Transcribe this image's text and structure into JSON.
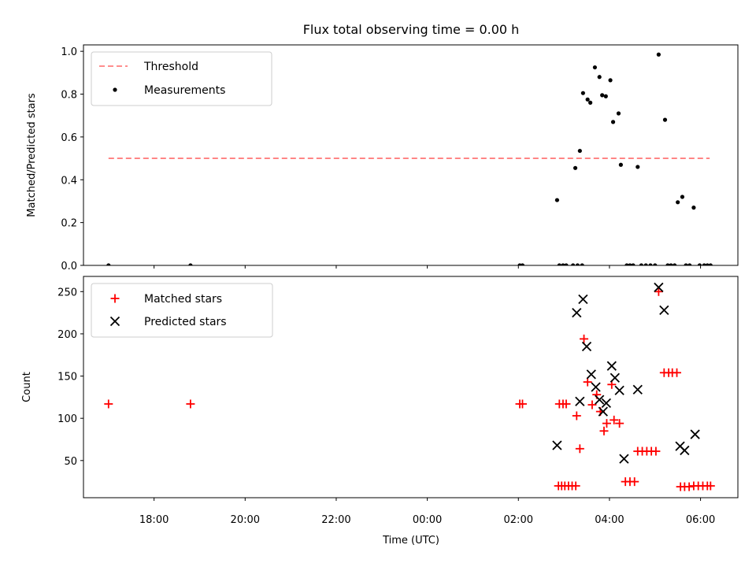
{
  "title": "Flux total observing time = 0.00 h",
  "x_axis": {
    "label": "Time (UTC)",
    "ticks": [
      {
        "value": 18,
        "label": "18:00"
      },
      {
        "value": 20,
        "label": "20:00"
      },
      {
        "value": 22,
        "label": "22:00"
      },
      {
        "value": 24,
        "label": "00:00"
      },
      {
        "value": 26,
        "label": "02:00"
      },
      {
        "value": 28,
        "label": "04:00"
      },
      {
        "value": 30,
        "label": "06:00"
      }
    ]
  },
  "chart_data": [
    {
      "type": "scatter",
      "panel": "top",
      "ylabel": "Matched/Predicted stars",
      "xlim": [
        16.45,
        30.82
      ],
      "ylim": [
        0,
        1.03
      ],
      "yticks": [
        {
          "value": 0.0,
          "label": "0.0"
        },
        {
          "value": 0.2,
          "label": "0.2"
        },
        {
          "value": 0.4,
          "label": "0.4"
        },
        {
          "value": 0.6,
          "label": "0.6"
        },
        {
          "value": 0.8,
          "label": "0.8"
        },
        {
          "value": 1.0,
          "label": "1.0"
        }
      ],
      "legend_position": "top-left",
      "threshold": {
        "name": "Threshold",
        "value": 0.5,
        "x_range": [
          17.0,
          30.2
        ],
        "color": "#ff7f7f",
        "style": "dashed"
      },
      "measurements": {
        "name": "Measurements",
        "color": "#000000",
        "points": [
          [
            17.0,
            0.0
          ],
          [
            18.8,
            0.0
          ],
          [
            26.03,
            0.0
          ],
          [
            26.09,
            0.0
          ],
          [
            26.9,
            0.0
          ],
          [
            26.98,
            0.0
          ],
          [
            27.05,
            0.0
          ],
          [
            27.2,
            0.0
          ],
          [
            27.3,
            0.0
          ],
          [
            27.4,
            0.0
          ],
          [
            26.85,
            0.305
          ],
          [
            27.25,
            0.455
          ],
          [
            27.35,
            0.535
          ],
          [
            27.42,
            0.805
          ],
          [
            27.52,
            0.775
          ],
          [
            27.58,
            0.76
          ],
          [
            27.68,
            0.925
          ],
          [
            27.78,
            0.88
          ],
          [
            27.84,
            0.795
          ],
          [
            27.92,
            0.79
          ],
          [
            28.02,
            0.865
          ],
          [
            28.08,
            0.67
          ],
          [
            28.2,
            0.71
          ],
          [
            28.25,
            0.47
          ],
          [
            28.62,
            0.46
          ],
          [
            29.08,
            0.985
          ],
          [
            29.22,
            0.68
          ],
          [
            29.5,
            0.295
          ],
          [
            29.6,
            0.32
          ],
          [
            29.85,
            0.27
          ],
          [
            28.38,
            0.0
          ],
          [
            28.45,
            0.0
          ],
          [
            28.52,
            0.0
          ],
          [
            28.7,
            0.0
          ],
          [
            28.8,
            0.0
          ],
          [
            28.9,
            0.0
          ],
          [
            29.0,
            0.0
          ],
          [
            29.28,
            0.0
          ],
          [
            29.35,
            0.0
          ],
          [
            29.43,
            0.0
          ],
          [
            29.68,
            0.0
          ],
          [
            29.76,
            0.0
          ],
          [
            29.98,
            0.0
          ],
          [
            30.08,
            0.0
          ],
          [
            30.15,
            0.0
          ],
          [
            30.22,
            0.0
          ]
        ]
      }
    },
    {
      "type": "scatter",
      "panel": "bottom",
      "ylabel": "Count",
      "xlim": [
        16.45,
        30.82
      ],
      "ylim": [
        6,
        268
      ],
      "yticks": [
        {
          "value": 50,
          "label": "50"
        },
        {
          "value": 100,
          "label": "100"
        },
        {
          "value": 150,
          "label": "150"
        },
        {
          "value": 200,
          "label": "200"
        },
        {
          "value": 250,
          "label": "250"
        }
      ],
      "legend_position": "top-left",
      "series": [
        {
          "name": "Matched stars",
          "marker": "plus",
          "color": "#ff0000",
          "points": [
            [
              17.0,
              117
            ],
            [
              18.8,
              117
            ],
            [
              26.03,
              117
            ],
            [
              26.09,
              117
            ],
            [
              26.9,
              117
            ],
            [
              26.98,
              117
            ],
            [
              27.05,
              117
            ],
            [
              26.88,
              20
            ],
            [
              26.95,
              20
            ],
            [
              27.02,
              20
            ],
            [
              27.1,
              20
            ],
            [
              27.18,
              20
            ],
            [
              27.26,
              20
            ],
            [
              27.28,
              103
            ],
            [
              27.35,
              64
            ],
            [
              27.44,
              194
            ],
            [
              27.52,
              143
            ],
            [
              27.62,
              116
            ],
            [
              27.72,
              128
            ],
            [
              27.8,
              108
            ],
            [
              27.88,
              85
            ],
            [
              27.94,
              94
            ],
            [
              28.05,
              140
            ],
            [
              28.1,
              98
            ],
            [
              28.22,
              94
            ],
            [
              28.35,
              25
            ],
            [
              28.45,
              25
            ],
            [
              28.55,
              25
            ],
            [
              28.62,
              61
            ],
            [
              28.72,
              61
            ],
            [
              28.82,
              61
            ],
            [
              28.92,
              61
            ],
            [
              29.02,
              61
            ],
            [
              29.08,
              250
            ],
            [
              29.2,
              154
            ],
            [
              29.3,
              154
            ],
            [
              29.38,
              154
            ],
            [
              29.48,
              154
            ],
            [
              29.56,
              19
            ],
            [
              29.65,
              19
            ],
            [
              29.75,
              19
            ],
            [
              29.85,
              20
            ],
            [
              29.95,
              20
            ],
            [
              30.05,
              20
            ],
            [
              30.15,
              20
            ],
            [
              30.22,
              20
            ]
          ]
        },
        {
          "name": "Predicted stars",
          "marker": "x",
          "color": "#000000",
          "points": [
            [
              26.85,
              68
            ],
            [
              27.28,
              225
            ],
            [
              27.35,
              120
            ],
            [
              27.42,
              241
            ],
            [
              27.5,
              185
            ],
            [
              27.6,
              152
            ],
            [
              27.7,
              137
            ],
            [
              27.78,
              122
            ],
            [
              27.86,
              108
            ],
            [
              27.93,
              118
            ],
            [
              28.05,
              162
            ],
            [
              28.12,
              148
            ],
            [
              28.22,
              133
            ],
            [
              28.32,
              52
            ],
            [
              28.62,
              134
            ],
            [
              29.08,
              255
            ],
            [
              29.2,
              228
            ],
            [
              29.55,
              67
            ],
            [
              29.65,
              62
            ],
            [
              29.88,
              81
            ]
          ]
        }
      ]
    }
  ]
}
